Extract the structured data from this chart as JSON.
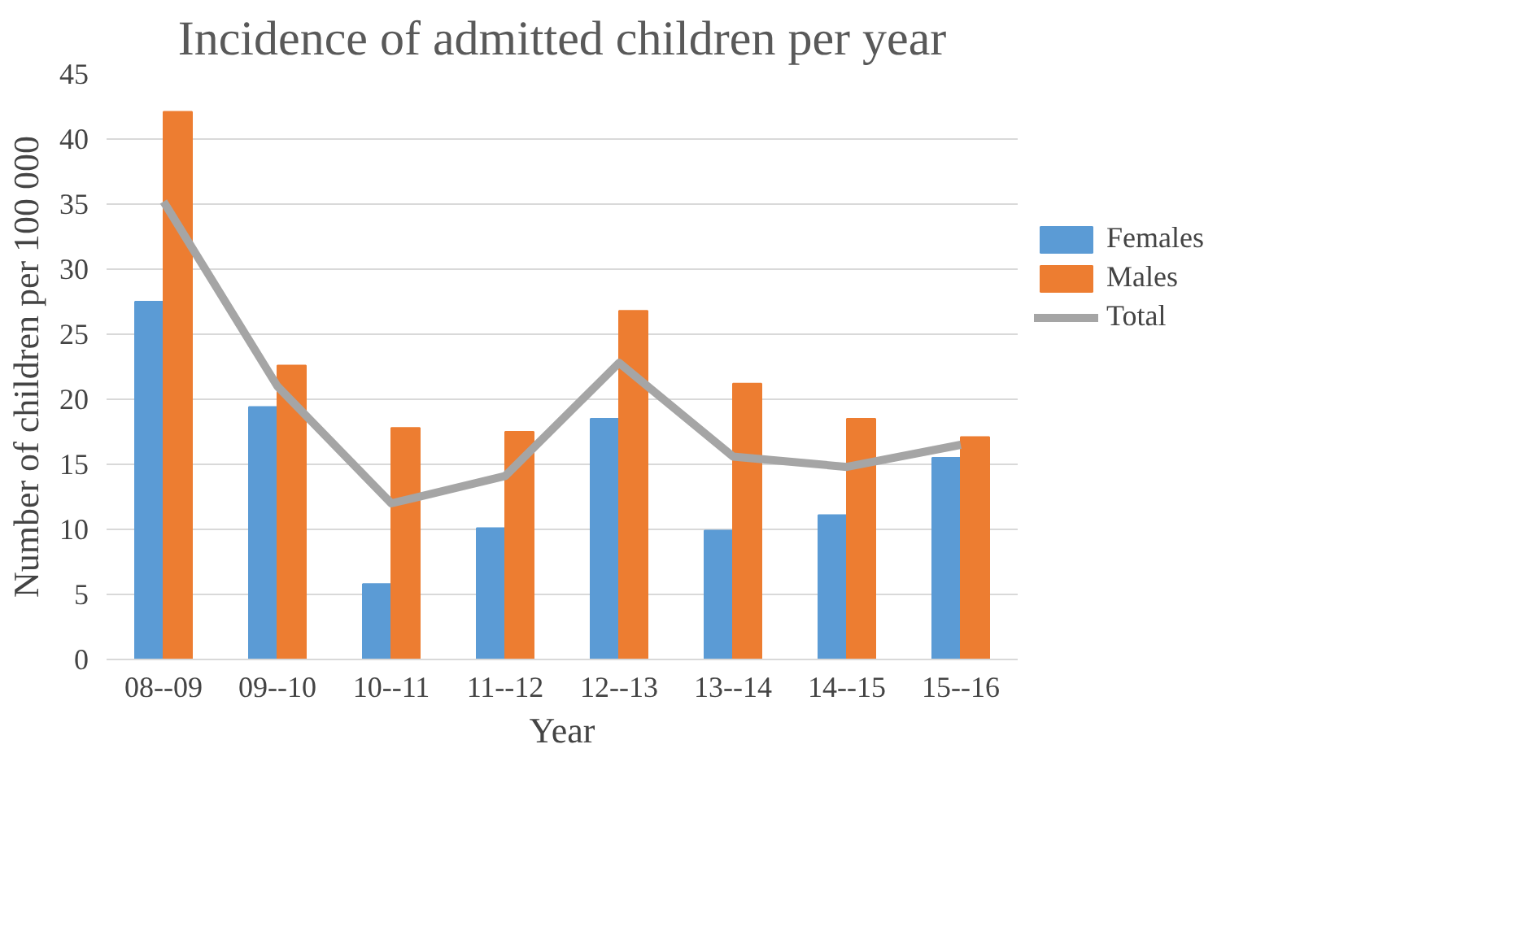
{
  "chart_data": {
    "type": "bar",
    "title": "Incidence of admitted children per year",
    "xlabel": "Year",
    "ylabel": "Number of children per 100 000",
    "categories": [
      "08--09",
      "09--10",
      "10--11",
      "11--12",
      "12--13",
      "13--14",
      "14--15",
      "15--16"
    ],
    "series": [
      {
        "name": "Females",
        "color": "#5b9bd5",
        "values": [
          27.5,
          19.4,
          5.8,
          10.1,
          18.5,
          9.9,
          11.1,
          15.5
        ]
      },
      {
        "name": "Males",
        "color": "#ed7d31",
        "values": [
          42.1,
          22.6,
          17.8,
          17.5,
          26.8,
          21.2,
          18.5,
          17.1
        ]
      },
      {
        "name": "Total",
        "type": "line",
        "color": "#a5a5a5",
        "values": [
          35.2,
          21.0,
          12.0,
          14.1,
          22.8,
          15.6,
          14.8,
          16.5
        ]
      }
    ],
    "ylim": [
      0,
      45
    ],
    "yticks": [
      0,
      5,
      10,
      15,
      20,
      25,
      30,
      35,
      40,
      45
    ],
    "grid": "y",
    "legend": "right"
  }
}
